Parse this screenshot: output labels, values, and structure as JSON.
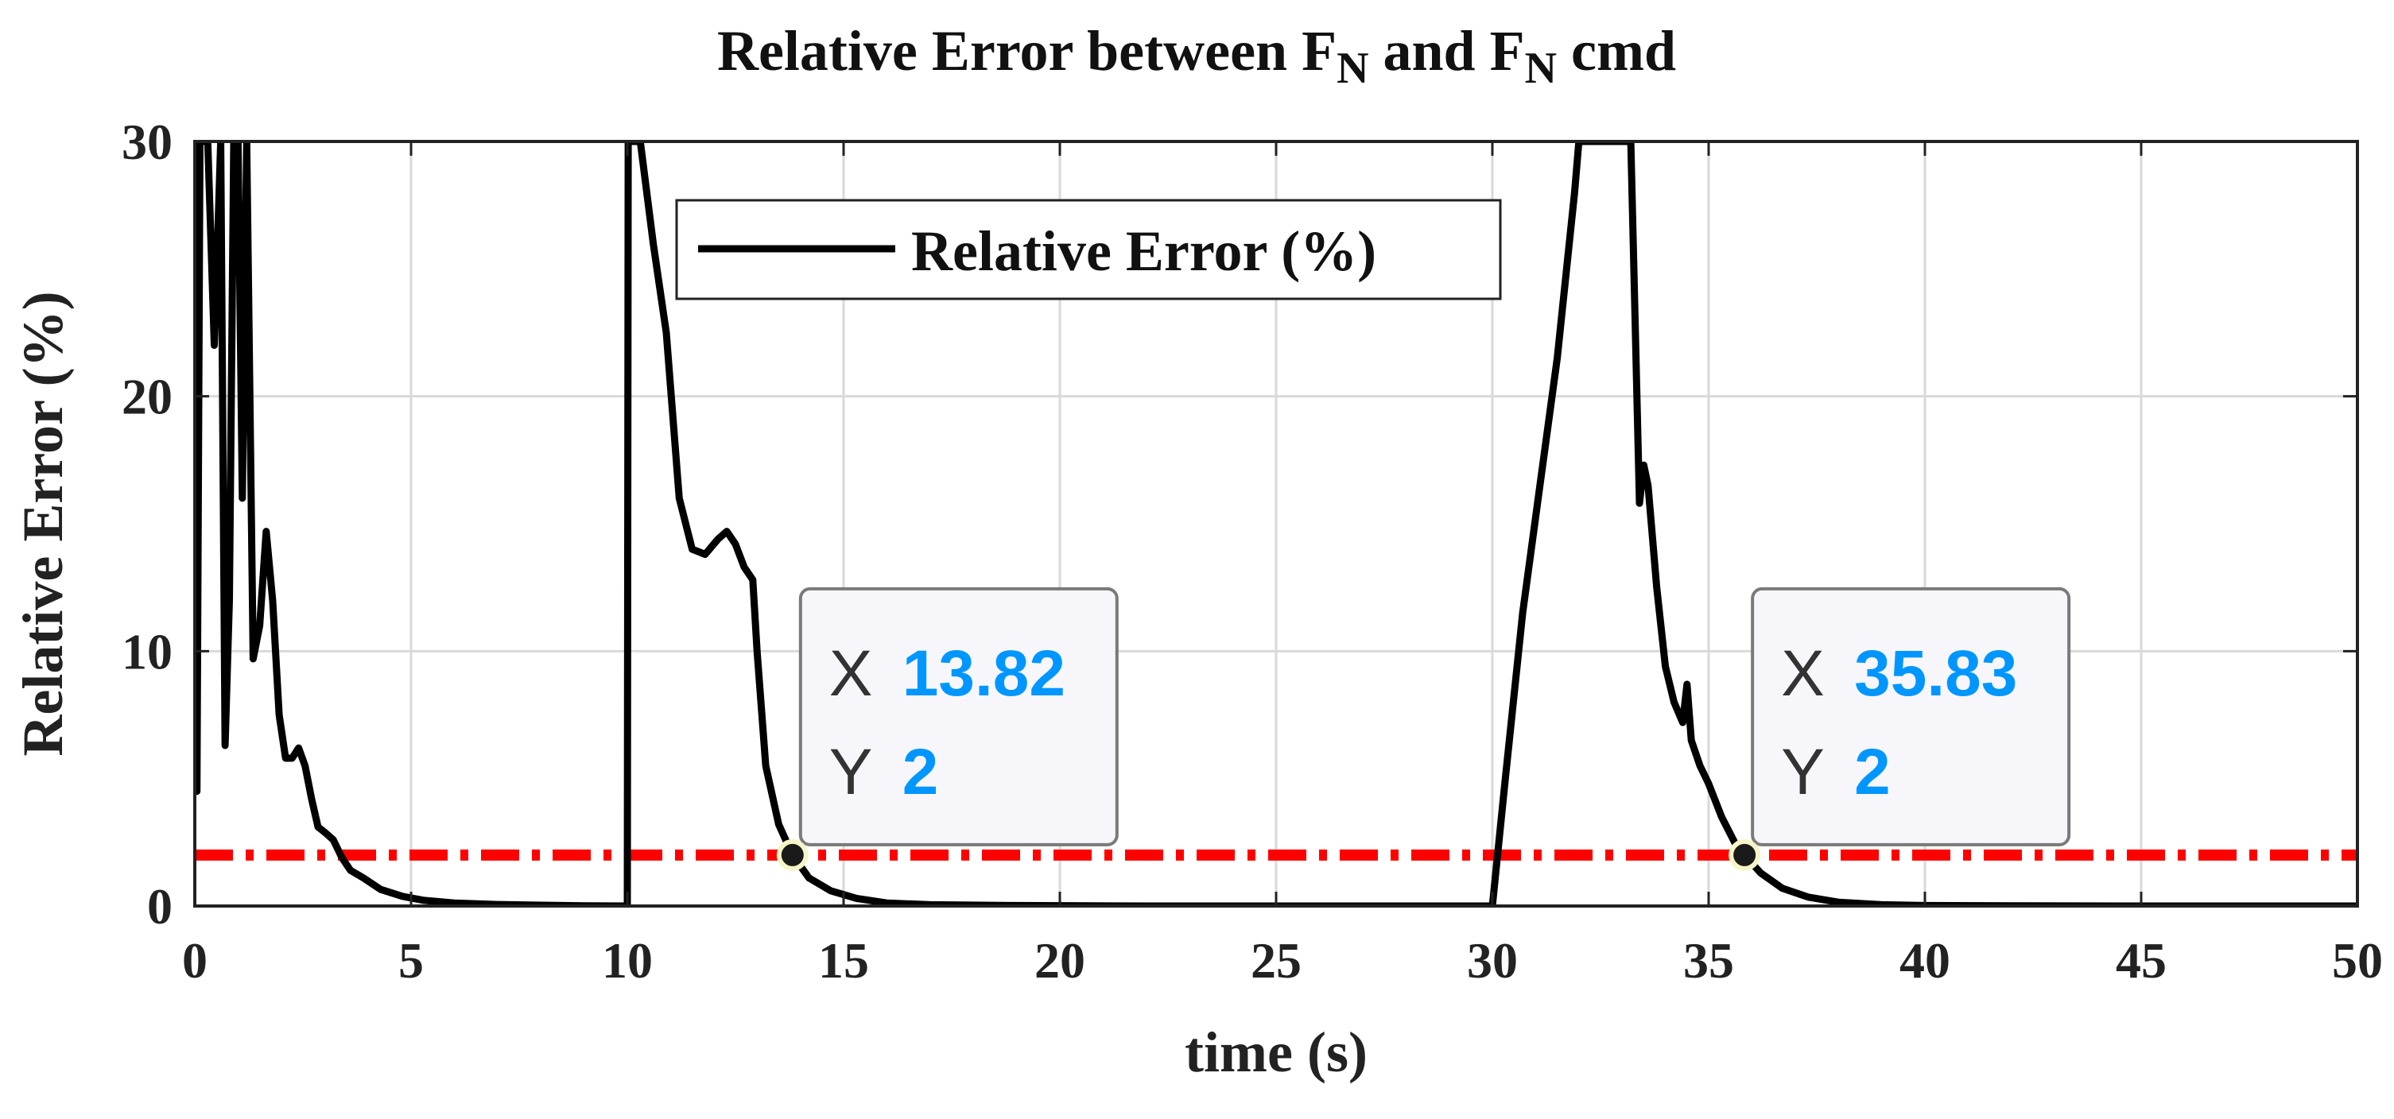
{
  "chart_data": {
    "type": "line",
    "title": {
      "prefix": "Relative Error between F",
      "sub1": "N",
      "middle": " and F",
      "sub2": "N",
      "suffix": " cmd"
    },
    "xlabel": "time (s)",
    "ylabel": "Relative Error (%)",
    "xlim": [
      0,
      50
    ],
    "ylim": [
      0,
      30
    ],
    "xticks": [
      0,
      5,
      10,
      15,
      20,
      25,
      30,
      35,
      40,
      45,
      50
    ],
    "yticks": [
      0,
      10,
      20,
      30
    ],
    "grid": true,
    "legend": {
      "placement": "top-left",
      "entries": [
        "Relative Error (%)"
      ]
    },
    "threshold": {
      "y": 2,
      "style": "dash-dot",
      "color": "#ff0000"
    },
    "series": [
      {
        "name": "Relative Error (%)",
        "color": "#000000",
        "x": [
          0.05,
          0.12,
          0.2,
          0.3,
          0.45,
          0.6,
          0.7,
          0.8,
          0.9,
          1.0,
          1.1,
          1.2,
          1.35,
          1.5,
          1.65,
          1.8,
          1.95,
          2.1,
          2.25,
          2.4,
          2.55,
          2.7,
          2.85,
          3.0,
          3.2,
          3.4,
          3.6,
          3.9,
          4.3,
          4.8,
          5.3,
          6.0,
          7.0,
          8.0,
          9.0,
          9.95,
          10.0,
          10.02,
          10.1,
          10.3,
          10.6,
          10.9,
          11.2,
          11.5,
          11.8,
          12.1,
          12.3,
          12.5,
          12.7,
          12.9,
          13.0,
          13.2,
          13.5,
          13.82,
          14.2,
          14.7,
          15.3,
          16.0,
          17.0,
          19.0,
          22.0,
          25.0,
          28.0,
          29.9,
          30.0,
          30.3,
          30.7,
          31.1,
          31.5,
          31.9,
          32.0,
          33.2,
          33.3,
          33.4,
          33.5,
          33.6,
          33.8,
          34.0,
          34.2,
          34.4,
          34.5,
          34.6,
          34.8,
          35.0,
          35.3,
          35.6,
          35.83,
          36.2,
          36.7,
          37.3,
          38.0,
          39.0,
          40.0,
          42.0,
          45.0,
          50.0
        ],
        "y": [
          4.5,
          30,
          30,
          30,
          22,
          30,
          6.3,
          12,
          30,
          30,
          16,
          30,
          9.7,
          11,
          14.7,
          12,
          7.5,
          5.8,
          5.8,
          6.2,
          5.5,
          4.2,
          3.1,
          2.9,
          2.6,
          1.9,
          1.4,
          1.1,
          0.65,
          0.38,
          0.22,
          0.12,
          0.06,
          0.03,
          0.01,
          0,
          0,
          30,
          30,
          30,
          26,
          22.5,
          16,
          14,
          13.8,
          14.4,
          14.7,
          14.2,
          13.3,
          12.8,
          10,
          5.5,
          3.2,
          2,
          1.1,
          0.6,
          0.3,
          0.12,
          0.05,
          0.02,
          0,
          0,
          0,
          0,
          0,
          5,
          11.5,
          16.5,
          21.5,
          28,
          30,
          30,
          23,
          15.8,
          17.3,
          16.5,
          12.5,
          9.4,
          8,
          7.2,
          8.7,
          6.5,
          5.5,
          4.8,
          3.5,
          2.5,
          2,
          1.3,
          0.7,
          0.35,
          0.15,
          0.05,
          0.02,
          0.01,
          0,
          0
        ]
      }
    ],
    "datatips": [
      {
        "x": 13.82,
        "y": 2,
        "x_label": "X",
        "y_label": "Y",
        "x_text": "13.82",
        "y_text": "2",
        "value_color": "#0096ff"
      },
      {
        "x": 35.83,
        "y": 2,
        "x_label": "X",
        "y_label": "Y",
        "x_text": "35.83",
        "y_text": "2",
        "value_color": "#0096ff"
      }
    ]
  }
}
